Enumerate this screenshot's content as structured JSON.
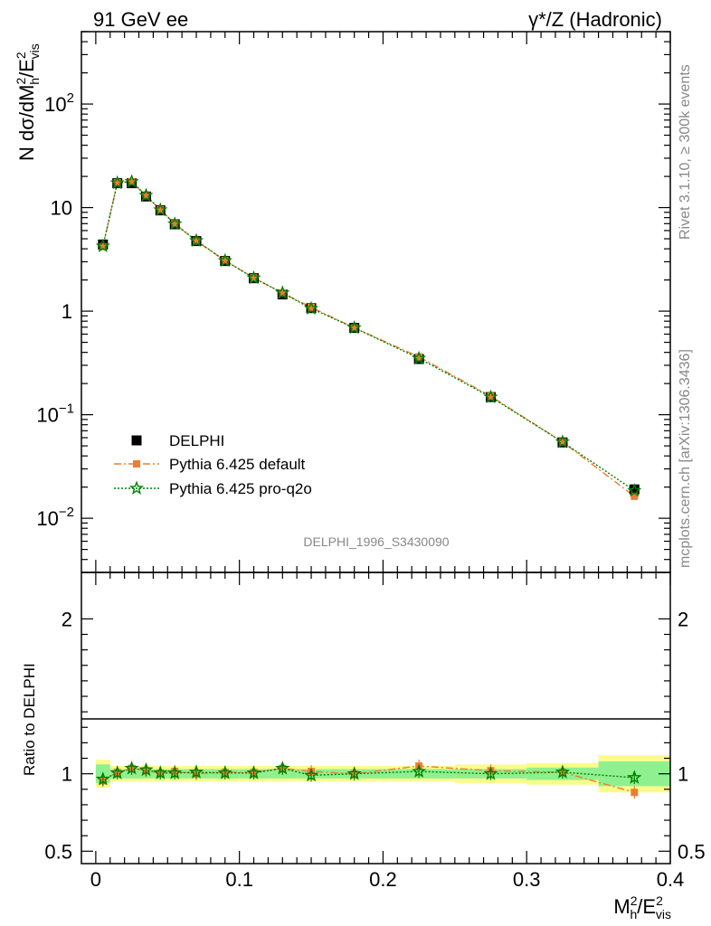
{
  "header": {
    "left": "91 GeV ee",
    "right": "γ*/Z (Hadronic)"
  },
  "side_labels": {
    "rivet": "Rivet 3.1.10, ≥ 300k events",
    "mcplots": "mcplots.cern.ch [arXiv:1306.3436]"
  },
  "watermark": "DELPHI_1996_S3430090",
  "chart_data": [
    {
      "type": "scatter",
      "ylabel": "N dσ/dM_h^2/E_vis^2",
      "y_scale": "log",
      "ylim": [
        0.003,
        500
      ],
      "xlim": [
        -0.01,
        0.4
      ],
      "y_ticks": [
        "10^-2",
        "10^-1",
        "1",
        "10",
        "10^2"
      ],
      "legend": {
        "position": "lower-left",
        "entries": [
          "DELPHI",
          "Pythia 6.425 default",
          "Pythia 6.425 pro-q2o"
        ]
      },
      "x": [
        0.005,
        0.015,
        0.025,
        0.035,
        0.045,
        0.055,
        0.07,
        0.09,
        0.11,
        0.13,
        0.15,
        0.18,
        0.225,
        0.275,
        0.325,
        0.375
      ],
      "series": [
        {
          "name": "DELPHI",
          "color": "#000000",
          "marker": "square",
          "values": [
            4.4,
            17.2,
            17.2,
            12.8,
            9.4,
            6.9,
            4.75,
            3.05,
            2.08,
            1.45,
            1.07,
            0.69,
            0.345,
            0.148,
            0.054,
            0.019
          ]
        },
        {
          "name": "Pythia 6.425 default",
          "color": "#f07c32",
          "marker": "square-small",
          "line": "dashdot",
          "values": [
            4.2,
            17.4,
            17.8,
            13.0,
            9.5,
            7.0,
            4.75,
            3.08,
            2.1,
            1.5,
            1.09,
            0.69,
            0.362,
            0.151,
            0.0545,
            0.0163
          ]
        },
        {
          "name": "Pythia 6.425 pro-q2o",
          "color": "#008000",
          "marker": "star",
          "line": "dotted",
          "values": [
            4.25,
            17.3,
            17.8,
            13.1,
            9.5,
            6.95,
            4.8,
            3.07,
            2.09,
            1.5,
            1.06,
            0.69,
            0.35,
            0.148,
            0.0545,
            0.0185
          ]
        }
      ]
    },
    {
      "type": "scatter",
      "ylabel": "Ratio to DELPHI",
      "xlabel": "M_h^2/E_vis^2",
      "xlim": [
        -0.01,
        0.4
      ],
      "ylim": [
        0.42,
        2.3
      ],
      "y_ticks": [
        "0.5",
        "1",
        "2"
      ],
      "x_ticks": [
        "0",
        "0.1",
        "0.2",
        "0.3",
        "0.4"
      ],
      "bands": {
        "edges": [
          0.0,
          0.01,
          0.02,
          0.03,
          0.04,
          0.05,
          0.06,
          0.08,
          0.1,
          0.12,
          0.14,
          0.16,
          0.2,
          0.25,
          0.3,
          0.35,
          0.4
        ],
        "stat": [
          0.06,
          0.03,
          0.03,
          0.03,
          0.03,
          0.03,
          0.03,
          0.03,
          0.03,
          0.03,
          0.03,
          0.03,
          0.03,
          0.03,
          0.04,
          0.08
        ],
        "total": [
          0.09,
          0.05,
          0.05,
          0.05,
          0.05,
          0.05,
          0.05,
          0.05,
          0.05,
          0.05,
          0.05,
          0.05,
          0.05,
          0.06,
          0.07,
          0.12
        ],
        "stat_color": "#8ff08f",
        "total_color": "#fbfb8c"
      },
      "series": [
        {
          "name": "Pythia 6.425 default",
          "color": "#f07c32",
          "values": [
            0.955,
            1.01,
            1.035,
            1.02,
            1.005,
            1.015,
            1.0,
            1.01,
            1.01,
            1.035,
            1.015,
            1.0,
            1.05,
            1.02,
            1.01,
            0.88
          ]
        },
        {
          "name": "Pythia 6.425 pro-q2o",
          "color": "#008000",
          "values": [
            0.965,
            1.005,
            1.035,
            1.025,
            1.005,
            1.005,
            1.01,
            1.005,
            1.005,
            1.035,
            0.99,
            1.0,
            1.015,
            1.0,
            1.01,
            0.975
          ]
        }
      ]
    }
  ]
}
